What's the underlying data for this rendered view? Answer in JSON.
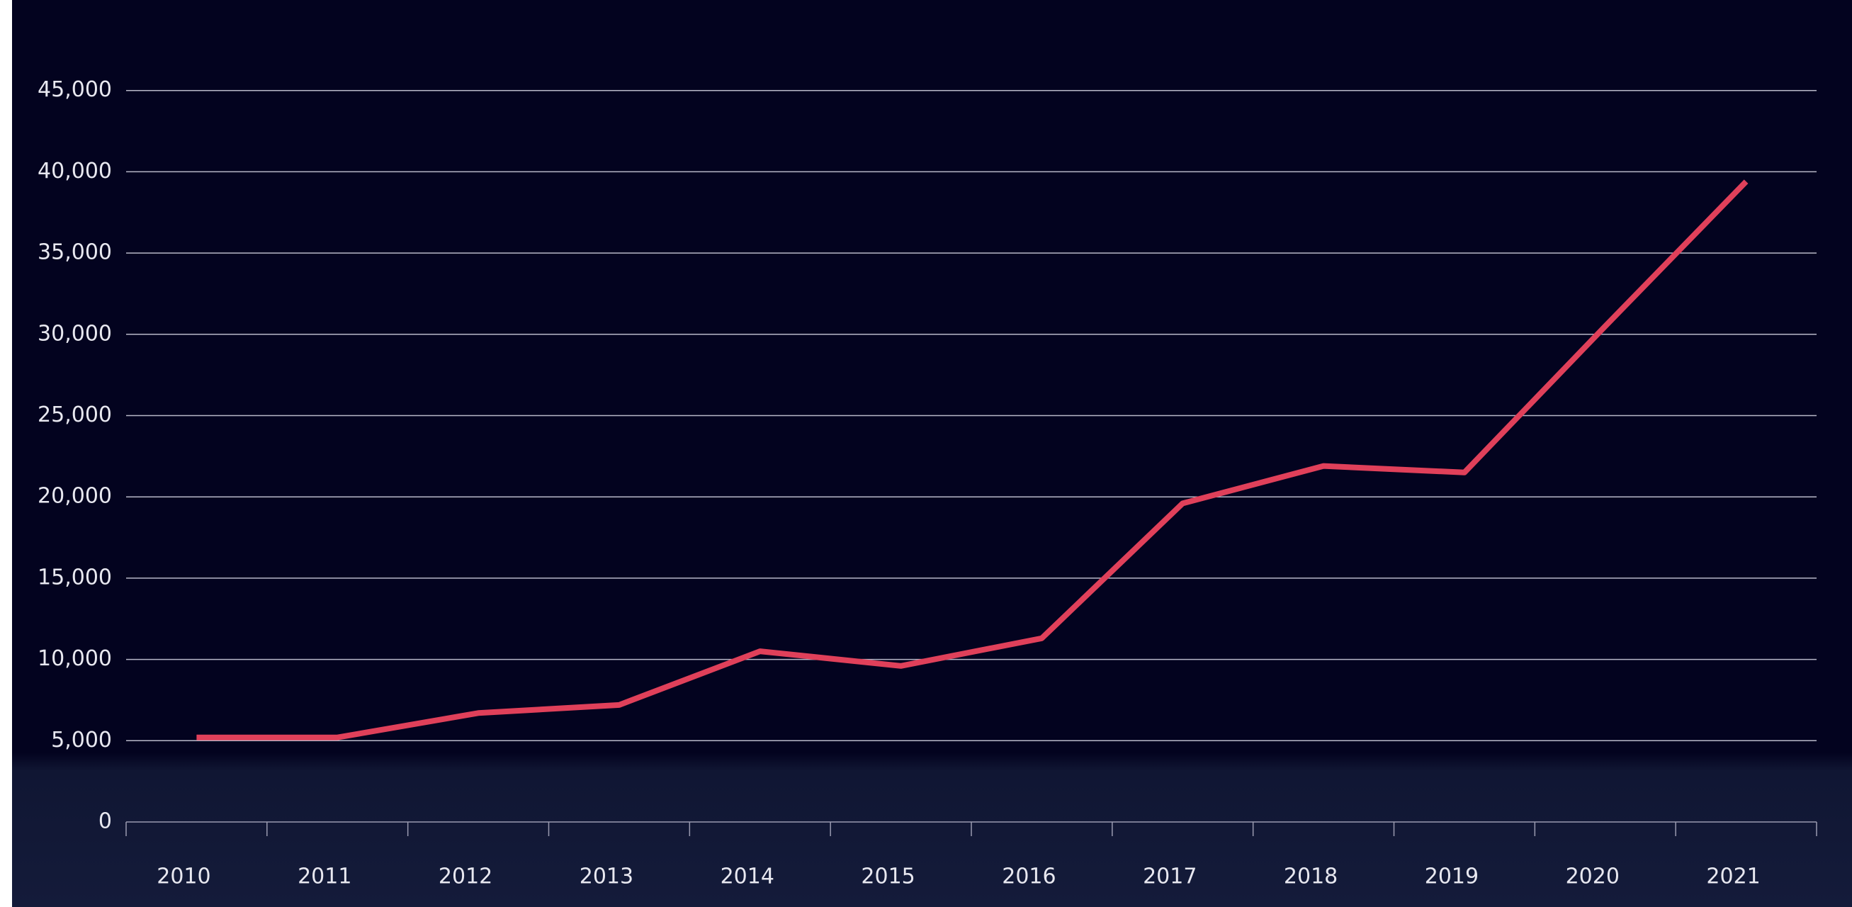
{
  "chart_data": {
    "type": "line",
    "categories": [
      "2010",
      "2011",
      "2012",
      "2013",
      "2014",
      "2015",
      "2016",
      "2017",
      "2018",
      "2019",
      "2020",
      "2021"
    ],
    "series": [
      {
        "color": "#e0405a",
        "values": [
          5200,
          5200,
          6700,
          7200,
          10500,
          9600,
          11300,
          19600,
          21900,
          21500,
          30500,
          39400
        ]
      }
    ],
    "ylim": [
      0,
      50000
    ],
    "yticks": [
      0,
      {
        "value": 5000,
        "label": "5,000"
      },
      {
        "value": 10000,
        "label": "10,000"
      },
      {
        "value": 15000,
        "label": "15,000"
      },
      {
        "value": 20000,
        "label": "20,000"
      },
      {
        "value": 25000,
        "label": "25,000"
      },
      {
        "value": 30000,
        "label": "30,000"
      },
      {
        "value": 35000,
        "label": "35,000"
      },
      {
        "value": 40000,
        "label": "40,000"
      },
      {
        "value": 45000,
        "label": "45,000"
      }
    ],
    "grid": true
  }
}
